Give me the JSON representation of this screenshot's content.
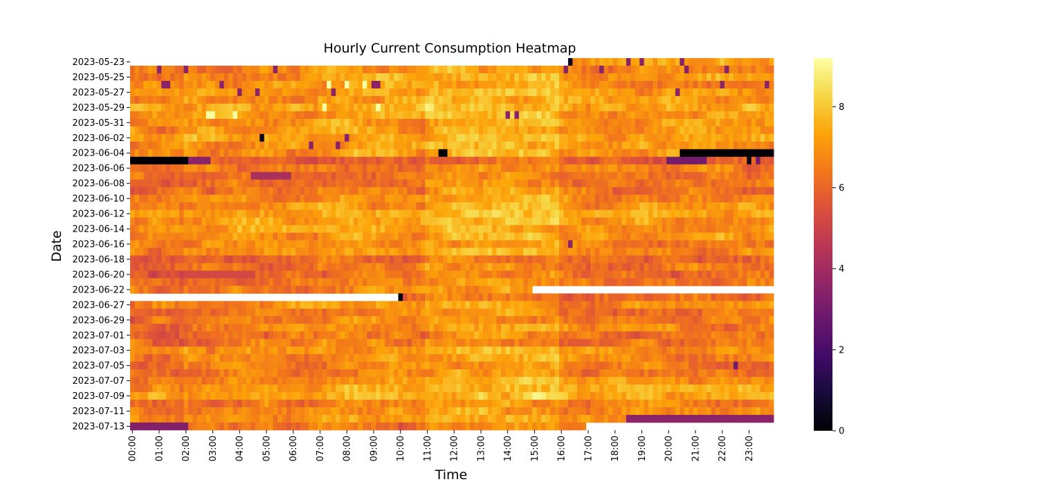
{
  "chart_data": {
    "type": "heatmap",
    "title": "Hourly Current Consumption Heatmap",
    "xlabel": "Time",
    "ylabel": "Date",
    "x_tick_labels": [
      "00:00",
      "01:00",
      "02:00",
      "03:00",
      "04:00",
      "05:00",
      "06:00",
      "07:00",
      "08:00",
      "09:00",
      "10:00",
      "11:00",
      "12:00",
      "13:00",
      "14:00",
      "15:00",
      "16:00",
      "17:00",
      "18:00",
      "19:00",
      "20:00",
      "21:00",
      "22:00",
      "23:00"
    ],
    "y_tick_labels": [
      "2023-05-23",
      "2023-05-25",
      "2023-05-27",
      "2023-05-29",
      "2023-05-31",
      "2023-06-02",
      "2023-06-04",
      "2023-06-06",
      "2023-06-08",
      "2023-06-10",
      "2023-06-12",
      "2023-06-14",
      "2023-06-16",
      "2023-06-18",
      "2023-06-20",
      "2023-06-22",
      "2023-06-27",
      "2023-06-29",
      "2023-07-01",
      "2023-07-03",
      "2023-07-05",
      "2023-07-07",
      "2023-07-09",
      "2023-07-11",
      "2023-07-13"
    ],
    "rows": [
      "2023-05-23",
      "2023-05-24",
      "2023-05-25",
      "2023-05-26",
      "2023-05-27",
      "2023-05-28",
      "2023-05-29",
      "2023-05-30",
      "2023-05-31",
      "2023-06-01",
      "2023-06-02",
      "2023-06-03",
      "2023-06-04",
      "2023-06-05",
      "2023-06-06",
      "2023-06-07",
      "2023-06-08",
      "2023-06-09",
      "2023-06-10",
      "2023-06-11",
      "2023-06-12",
      "2023-06-13",
      "2023-06-14",
      "2023-06-15",
      "2023-06-16",
      "2023-06-17",
      "2023-06-18",
      "2023-06-19",
      "2023-06-20",
      "2023-06-21",
      "2023-06-22",
      "2023-06-26",
      "2023-06-27",
      "2023-06-28",
      "2023-06-29",
      "2023-06-30",
      "2023-07-01",
      "2023-07-02",
      "2023-07-03",
      "2023-07-04",
      "2023-07-05",
      "2023-07-06",
      "2023-07-07",
      "2023-07-08",
      "2023-07-09",
      "2023-07-10",
      "2023-07-11",
      "2023-07-12",
      "2023-07-13"
    ],
    "x_axis": {
      "from": "00:00",
      "to": "23:59",
      "step_minutes": 10
    },
    "row_levels": [
      7.2,
      6.8,
      7.0,
      6.9,
      7.1,
      7.0,
      7.3,
      7.2,
      7.1,
      7.0,
      7.2,
      7.0,
      6.9,
      5.5,
      6.4,
      6.3,
      6.2,
      6.5,
      6.8,
      6.9,
      7.3,
      7.1,
      7.1,
      6.9,
      6.6,
      6.7,
      6.0,
      6.3,
      6.1,
      6.2,
      6.5,
      6.2,
      6.8,
      6.5,
      6.4,
      6.6,
      6.3,
      6.5,
      6.9,
      6.7,
      6.4,
      6.5,
      6.9,
      7.3,
      7.4,
      6.6,
      6.8,
      6.8,
      6.3
    ],
    "special_cells": [
      {
        "date": "2023-05-23",
        "from": "00:00",
        "to": "16:20",
        "value": null
      },
      {
        "date": "2023-05-23",
        "from": "16:20",
        "to": "16:30",
        "value": 0.5
      },
      {
        "date": "2023-05-23",
        "from": "18:30",
        "to": "18:40",
        "value": 3.5
      },
      {
        "date": "2023-05-23",
        "from": "19:00",
        "to": "19:10",
        "value": 3.5
      },
      {
        "date": "2023-05-23",
        "from": "20:30",
        "to": "20:40",
        "value": 3.5
      },
      {
        "date": "2023-05-24",
        "from": "01:00",
        "to": "01:10",
        "value": 3.5
      },
      {
        "date": "2023-05-24",
        "from": "02:00",
        "to": "02:10",
        "value": 3.5
      },
      {
        "date": "2023-05-24",
        "from": "05:20",
        "to": "05:30",
        "value": 3.5
      },
      {
        "date": "2023-05-24",
        "from": "16:10",
        "to": "16:20",
        "value": 3.5
      },
      {
        "date": "2023-05-24",
        "from": "17:30",
        "to": "17:40",
        "value": 3.5
      },
      {
        "date": "2023-05-24",
        "from": "20:40",
        "to": "20:50",
        "value": 3.5
      },
      {
        "date": "2023-05-24",
        "from": "22:10",
        "to": "22:20",
        "value": 3.5
      },
      {
        "date": "2023-05-26",
        "from": "01:10",
        "to": "01:30",
        "value": 3.5
      },
      {
        "date": "2023-05-26",
        "from": "03:20",
        "to": "03:30",
        "value": 3.5
      },
      {
        "date": "2023-05-26",
        "from": "07:20",
        "to": "07:30",
        "value": 9.2
      },
      {
        "date": "2023-05-26",
        "from": "08:00",
        "to": "08:10",
        "value": 9.2
      },
      {
        "date": "2023-05-26",
        "from": "08:40",
        "to": "08:50",
        "value": 9.2
      },
      {
        "date": "2023-05-26",
        "from": "09:00",
        "to": "09:20",
        "value": 3.5
      },
      {
        "date": "2023-05-26",
        "from": "22:00",
        "to": "22:10",
        "value": 3.5
      },
      {
        "date": "2023-05-26",
        "from": "23:40",
        "to": "23:50",
        "value": 3.5
      },
      {
        "date": "2023-05-27",
        "from": "04:00",
        "to": "04:10",
        "value": 3.5
      },
      {
        "date": "2023-05-27",
        "from": "04:40",
        "to": "04:50",
        "value": 3.5
      },
      {
        "date": "2023-05-27",
        "from": "07:30",
        "to": "07:40",
        "value": 3.5
      },
      {
        "date": "2023-05-27",
        "from": "20:20",
        "to": "20:30",
        "value": 3.5
      },
      {
        "date": "2023-05-29",
        "from": "07:10",
        "to": "07:20",
        "value": 9.2
      },
      {
        "date": "2023-05-29",
        "from": "09:10",
        "to": "09:20",
        "value": 9.2
      },
      {
        "date": "2023-05-30",
        "from": "02:50",
        "to": "03:10",
        "value": 9.2
      },
      {
        "date": "2023-05-30",
        "from": "03:50",
        "to": "04:00",
        "value": 9.2
      },
      {
        "date": "2023-05-30",
        "from": "14:00",
        "to": "14:10",
        "value": 3.5
      },
      {
        "date": "2023-05-30",
        "from": "14:20",
        "to": "14:30",
        "value": 3.5
      },
      {
        "date": "2023-06-02",
        "from": "04:50",
        "to": "05:00",
        "value": 0.5
      },
      {
        "date": "2023-06-02",
        "from": "08:00",
        "to": "08:10",
        "value": 3.5
      },
      {
        "date": "2023-06-03",
        "from": "06:40",
        "to": "06:50",
        "value": 3.5
      },
      {
        "date": "2023-06-03",
        "from": "07:40",
        "to": "07:50",
        "value": 3.5
      },
      {
        "date": "2023-06-04",
        "from": "11:30",
        "to": "11:50",
        "value": 0.0
      },
      {
        "date": "2023-06-04",
        "from": "20:30",
        "to": "23:59",
        "value": 0.0
      },
      {
        "date": "2023-06-05",
        "from": "00:00",
        "to": "02:10",
        "value": 0.0
      },
      {
        "date": "2023-06-05",
        "from": "02:10",
        "to": "03:00",
        "value": 3.5
      },
      {
        "date": "2023-06-05",
        "from": "20:00",
        "to": "21:30",
        "value": 3.0
      },
      {
        "date": "2023-06-05",
        "from": "23:00",
        "to": "23:10",
        "value": 0.5
      },
      {
        "date": "2023-06-05",
        "from": "23:20",
        "to": "23:30",
        "value": 3.0
      },
      {
        "date": "2023-06-07",
        "from": "04:30",
        "to": "06:00",
        "value": 4.2
      },
      {
        "date": "2023-06-16",
        "from": "16:20",
        "to": "16:30",
        "value": 3.5
      },
      {
        "date": "2023-06-20",
        "from": "02:00",
        "to": "04:40",
        "value": 5.2
      },
      {
        "date": "2023-06-22",
        "from": "15:00",
        "to": "23:59",
        "value": null
      },
      {
        "date": "2023-06-26",
        "from": "00:00",
        "to": "10:00",
        "value": null
      },
      {
        "date": "2023-06-26",
        "from": "10:00",
        "to": "10:10",
        "value": 0.0
      },
      {
        "date": "2023-07-05",
        "from": "22:30",
        "to": "22:40",
        "value": 3.0
      },
      {
        "date": "2023-07-12",
        "from": "18:30",
        "to": "23:59",
        "value": 3.5
      },
      {
        "date": "2023-07-13",
        "from": "00:00",
        "to": "02:10",
        "value": 3.3
      },
      {
        "date": "2023-07-13",
        "from": "17:00",
        "to": "23:59",
        "value": null
      }
    ],
    "colorbar": {
      "colormap": "inferno",
      "min": 0,
      "max": 9.2,
      "ticks": [
        0,
        2,
        4,
        6,
        8
      ]
    }
  }
}
